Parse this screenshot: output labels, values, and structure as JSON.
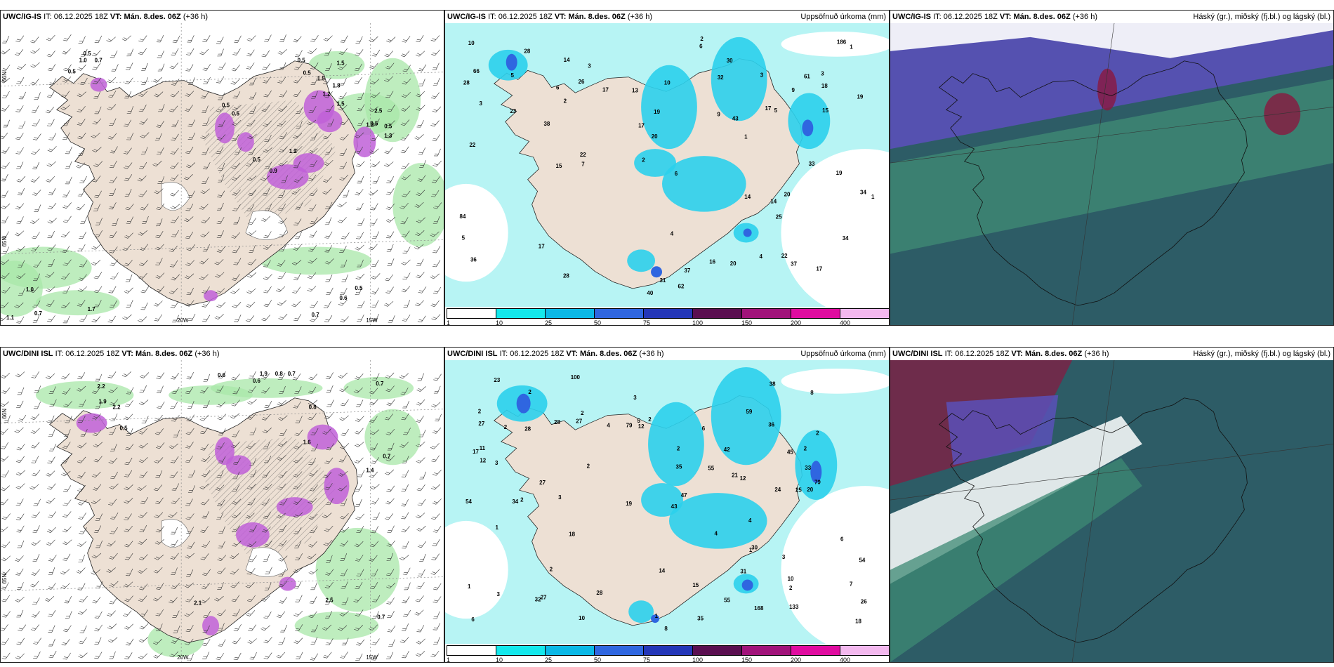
{
  "panels": [
    {
      "model": "UWC/IG-IS",
      "it_label": "IT:",
      "it": "06.12.2025 18Z",
      "vt_label": "VT:",
      "vt": "Mán. 8.des. 06Z",
      "lead": "(+36 h)",
      "title": ""
    },
    {
      "model": "UWC/IG-IS",
      "it_label": "IT:",
      "it": "06.12.2025 18Z",
      "vt_label": "VT:",
      "vt": "Mán. 8.des. 06Z",
      "lead": "(+36 h)",
      "title": "Uppsöfnuð úrkoma (mm)"
    },
    {
      "model": "UWC/IG-IS",
      "it_label": "IT:",
      "it": "06.12.2025 18Z",
      "vt_label": "VT:",
      "vt": "Mán. 8.des. 06Z",
      "lead": "(+36 h)",
      "title": "Háský (gr.), miðský (fj.bl.) og lágský (bl.)"
    },
    {
      "model": "UWC/DINI ISL",
      "it_label": "IT:",
      "it": "06.12.2025 18Z",
      "vt_label": "VT:",
      "vt": "Mán. 8.des. 06Z",
      "lead": "(+36 h)",
      "title": ""
    },
    {
      "model": "UWC/DINI ISL",
      "it_label": "IT:",
      "it": "06.12.2025 18Z",
      "vt_label": "VT:",
      "vt": "Mán. 8.des. 06Z",
      "lead": "(+36 h)",
      "title": "Uppsöfnuð úrkoma (mm)"
    },
    {
      "model": "UWC/DINI ISL",
      "it_label": "IT:",
      "it": "06.12.2025 18Z",
      "vt_label": "VT:",
      "vt": "Mán. 8.des. 06Z",
      "lead": "(+36 h)",
      "title": "Háský (gr.), miðský (fj.bl.) og lágský (bl.)"
    }
  ],
  "axes": {
    "lon_20w": "20W",
    "lon_15w": "15W",
    "lat_66n": "66N",
    "lat_65n": "65N"
  },
  "colorbar": {
    "ticks": [
      "1",
      "10",
      "25",
      "50",
      "75",
      "100",
      "150",
      "200",
      "400"
    ],
    "colors": [
      "#ffffff",
      "#14e8ec",
      "#0bb8e6",
      "#2f66e0",
      "#2436b8",
      "#5a0e50",
      "#a1137a",
      "#e00ca0",
      "#f3b8ee"
    ]
  },
  "colors": {
    "land": "#ede0d4",
    "sea_precip": "#b7f4f4",
    "precip_blue": "#2bd0ec",
    "wind_green": "#a8e7a8",
    "pink_precip": "#c060d8",
    "cloud_dark": "#2d5c66",
    "cloud_green": "#3e8a74",
    "cloud_purple": "#5a50b8",
    "cloud_red": "#8a1840"
  },
  "precip_labels_top": [
    {
      "t": "3"
    },
    {
      "t": "2"
    },
    {
      "t": "1"
    },
    {
      "t": "31"
    },
    {
      "t": "61"
    },
    {
      "t": "40"
    },
    {
      "t": "14"
    },
    {
      "t": "7"
    },
    {
      "t": "3"
    },
    {
      "t": "1"
    },
    {
      "t": "34"
    },
    {
      "t": "26"
    },
    {
      "t": "17"
    },
    {
      "t": "17"
    },
    {
      "t": "22"
    },
    {
      "t": "28"
    },
    {
      "t": "22"
    },
    {
      "t": "13"
    },
    {
      "t": "17"
    },
    {
      "t": "16"
    },
    {
      "t": "37"
    },
    {
      "t": "19"
    },
    {
      "t": "20"
    },
    {
      "t": "4"
    },
    {
      "t": "3"
    },
    {
      "t": "38"
    },
    {
      "t": "18"
    },
    {
      "t": "30"
    },
    {
      "t": "28"
    },
    {
      "t": "15"
    },
    {
      "t": "84"
    },
    {
      "t": "20"
    },
    {
      "t": "186"
    },
    {
      "t": "23"
    },
    {
      "t": "66"
    },
    {
      "t": "14"
    },
    {
      "t": "17"
    },
    {
      "t": "32"
    },
    {
      "t": "6"
    },
    {
      "t": "5"
    },
    {
      "t": "5"
    },
    {
      "t": "6"
    },
    {
      "t": "17"
    },
    {
      "t": "22"
    },
    {
      "t": "37"
    },
    {
      "t": "19"
    },
    {
      "t": "28"
    },
    {
      "t": "33"
    },
    {
      "t": "34"
    },
    {
      "t": "20"
    },
    {
      "t": "19"
    },
    {
      "t": "43"
    },
    {
      "t": "2"
    },
    {
      "t": "14"
    },
    {
      "t": "10"
    },
    {
      "t": "3"
    },
    {
      "t": "36"
    },
    {
      "t": "25"
    },
    {
      "t": "4"
    },
    {
      "t": "9"
    },
    {
      "t": "9"
    },
    {
      "t": "10"
    },
    {
      "t": "15"
    },
    {
      "t": "1"
    },
    {
      "t": "62"
    },
    {
      "t": "5"
    },
    {
      "t": "6"
    },
    {
      "t": "2"
    }
  ],
  "precip_labels_bottom": [
    {
      "t": "2"
    },
    {
      "t": "2"
    },
    {
      "t": "2"
    },
    {
      "t": "2"
    },
    {
      "t": "1"
    },
    {
      "t": "2"
    },
    {
      "t": "35"
    },
    {
      "t": "59"
    },
    {
      "t": "27"
    },
    {
      "t": "1"
    },
    {
      "t": "10"
    },
    {
      "t": "6"
    },
    {
      "t": "4"
    },
    {
      "t": "2"
    },
    {
      "t": "26"
    },
    {
      "t": "36"
    },
    {
      "t": "54"
    },
    {
      "t": "31"
    },
    {
      "t": "15"
    },
    {
      "t": "30"
    },
    {
      "t": "27"
    },
    {
      "t": "14"
    },
    {
      "t": "21"
    },
    {
      "t": "19"
    },
    {
      "t": "33"
    },
    {
      "t": "28"
    },
    {
      "t": "23"
    },
    {
      "t": "18"
    },
    {
      "t": "47"
    },
    {
      "t": "3"
    },
    {
      "t": "32"
    },
    {
      "t": "34"
    },
    {
      "t": "38"
    },
    {
      "t": "20"
    },
    {
      "t": "18"
    },
    {
      "t": "79"
    },
    {
      "t": "100"
    },
    {
      "t": "27"
    },
    {
      "t": "168"
    },
    {
      "t": "133"
    },
    {
      "t": "43"
    },
    {
      "t": "54"
    },
    {
      "t": "24"
    },
    {
      "t": "10"
    },
    {
      "t": "42"
    },
    {
      "t": "8"
    },
    {
      "t": "7"
    },
    {
      "t": "6"
    },
    {
      "t": "28"
    },
    {
      "t": "25"
    },
    {
      "t": "27"
    },
    {
      "t": "55"
    },
    {
      "t": "28"
    },
    {
      "t": "45"
    },
    {
      "t": "55"
    },
    {
      "t": "35"
    },
    {
      "t": "11"
    },
    {
      "t": "3"
    },
    {
      "t": "17"
    },
    {
      "t": "2"
    },
    {
      "t": "4"
    },
    {
      "t": "3"
    },
    {
      "t": "2"
    },
    {
      "t": "1"
    },
    {
      "t": "1"
    },
    {
      "t": "3"
    },
    {
      "t": "2"
    },
    {
      "t": "2"
    },
    {
      "t": "2"
    },
    {
      "t": "6"
    },
    {
      "t": "79"
    },
    {
      "t": "8"
    },
    {
      "t": "12"
    },
    {
      "t": "12"
    },
    {
      "t": "12"
    },
    {
      "t": "5"
    },
    {
      "t": "2"
    },
    {
      "t": "3"
    },
    {
      "t": "4"
    }
  ],
  "wind_labels_top": [
    {
      "t": "0.5"
    },
    {
      "t": "1.0"
    },
    {
      "t": "0.7"
    },
    {
      "t": "0.5"
    },
    {
      "t": "1.5"
    },
    {
      "t": "0.5"
    },
    {
      "t": "0.5"
    },
    {
      "t": "1.5"
    },
    {
      "t": "1.8"
    },
    {
      "t": "0.5"
    },
    {
      "t": "0.5"
    },
    {
      "t": "1.2"
    },
    {
      "t": "1.5"
    },
    {
      "t": "0.5"
    },
    {
      "t": "1.2"
    },
    {
      "t": "1.3"
    },
    {
      "t": "0.5"
    },
    {
      "t": "0.9"
    },
    {
      "t": "1.2"
    },
    {
      "t": "2.5"
    },
    {
      "t": "0.5"
    },
    {
      "t": "1.0"
    },
    {
      "t": "0.7"
    },
    {
      "t": "1.7"
    },
    {
      "t": "1.1"
    },
    {
      "t": "0.5"
    },
    {
      "t": "0.6"
    },
    {
      "t": "0.7"
    }
  ],
  "wind_labels_bottom": [
    {
      "t": "1.9"
    },
    {
      "t": "0.8"
    },
    {
      "t": "0.7"
    },
    {
      "t": "0.6"
    },
    {
      "t": "0.6"
    },
    {
      "t": "0.7"
    },
    {
      "t": "2.2"
    },
    {
      "t": "1.9"
    },
    {
      "t": "2.2"
    },
    {
      "t": "0.5"
    },
    {
      "t": "0.8"
    },
    {
      "t": "1.6"
    },
    {
      "t": "1.4"
    },
    {
      "t": "0.7"
    },
    {
      "t": "2.1"
    },
    {
      "t": "0.7"
    },
    {
      "t": "2.5"
    }
  ]
}
